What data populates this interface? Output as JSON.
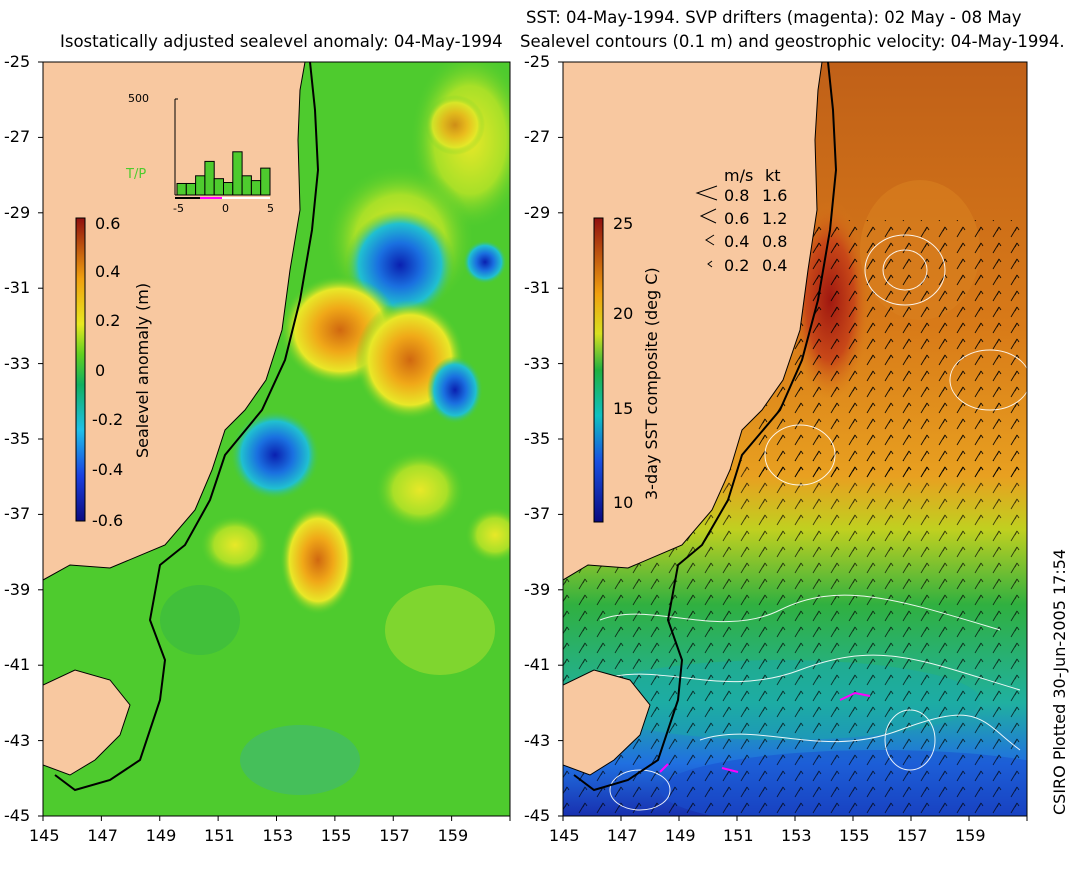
{
  "left_panel": {
    "title": "Isostatically adjusted sealevel anomaly: 04-May-1994",
    "colorbar": {
      "label": "Sealevel anomaly (m)",
      "min": -0.6,
      "max": 0.6,
      "ticks": [
        "0.6",
        "0.4",
        "0.2",
        "0",
        "-0.2",
        "-0.4",
        "-0.6"
      ]
    },
    "histogram": {
      "ymax_label": "500",
      "series_label": "T/P",
      "x_ticks": [
        "-5",
        "0",
        "5"
      ],
      "bars": [
        0.12,
        0.12,
        0.2,
        0.35,
        0.17,
        0.13,
        0.45,
        0.2,
        0.15,
        0.28
      ]
    }
  },
  "right_panel": {
    "title_line1": "SST: 04-May-1994. SVP drifters (magenta): 02 May - 08 May",
    "title_line2": "Sealevel contours (0.1 m) and geostrophic velocity: 04-May-1994.",
    "colorbar": {
      "label": "3-day SST composite (deg C)",
      "min": 9,
      "max": 25,
      "ticks": [
        "25",
        "20",
        "15",
        "10"
      ]
    },
    "velocity_legend": {
      "header_ms": "m/s",
      "header_kt": "kt",
      "rows": [
        {
          "ms": "0.8",
          "kt": "1.6"
        },
        {
          "ms": "0.6",
          "kt": "1.2"
        },
        {
          "ms": "0.4",
          "kt": "0.8"
        },
        {
          "ms": "0.2",
          "kt": "0.4"
        }
      ]
    }
  },
  "axes": {
    "lat_labels": [
      "-25",
      "-27",
      "-29",
      "-31",
      "-33",
      "-35",
      "-37",
      "-39",
      "-41",
      "-43",
      "-45"
    ],
    "lon_labels": [
      "145",
      "147",
      "149",
      "151",
      "153",
      "155",
      "157",
      "159"
    ]
  },
  "credit": "CSIRO Plotted 30-Jun-2005 17:54",
  "colors": {
    "land": "#f8c8a0",
    "sea_green": "#4ecb2e",
    "contour": "#000000",
    "drifter": "#ff00ff"
  }
}
